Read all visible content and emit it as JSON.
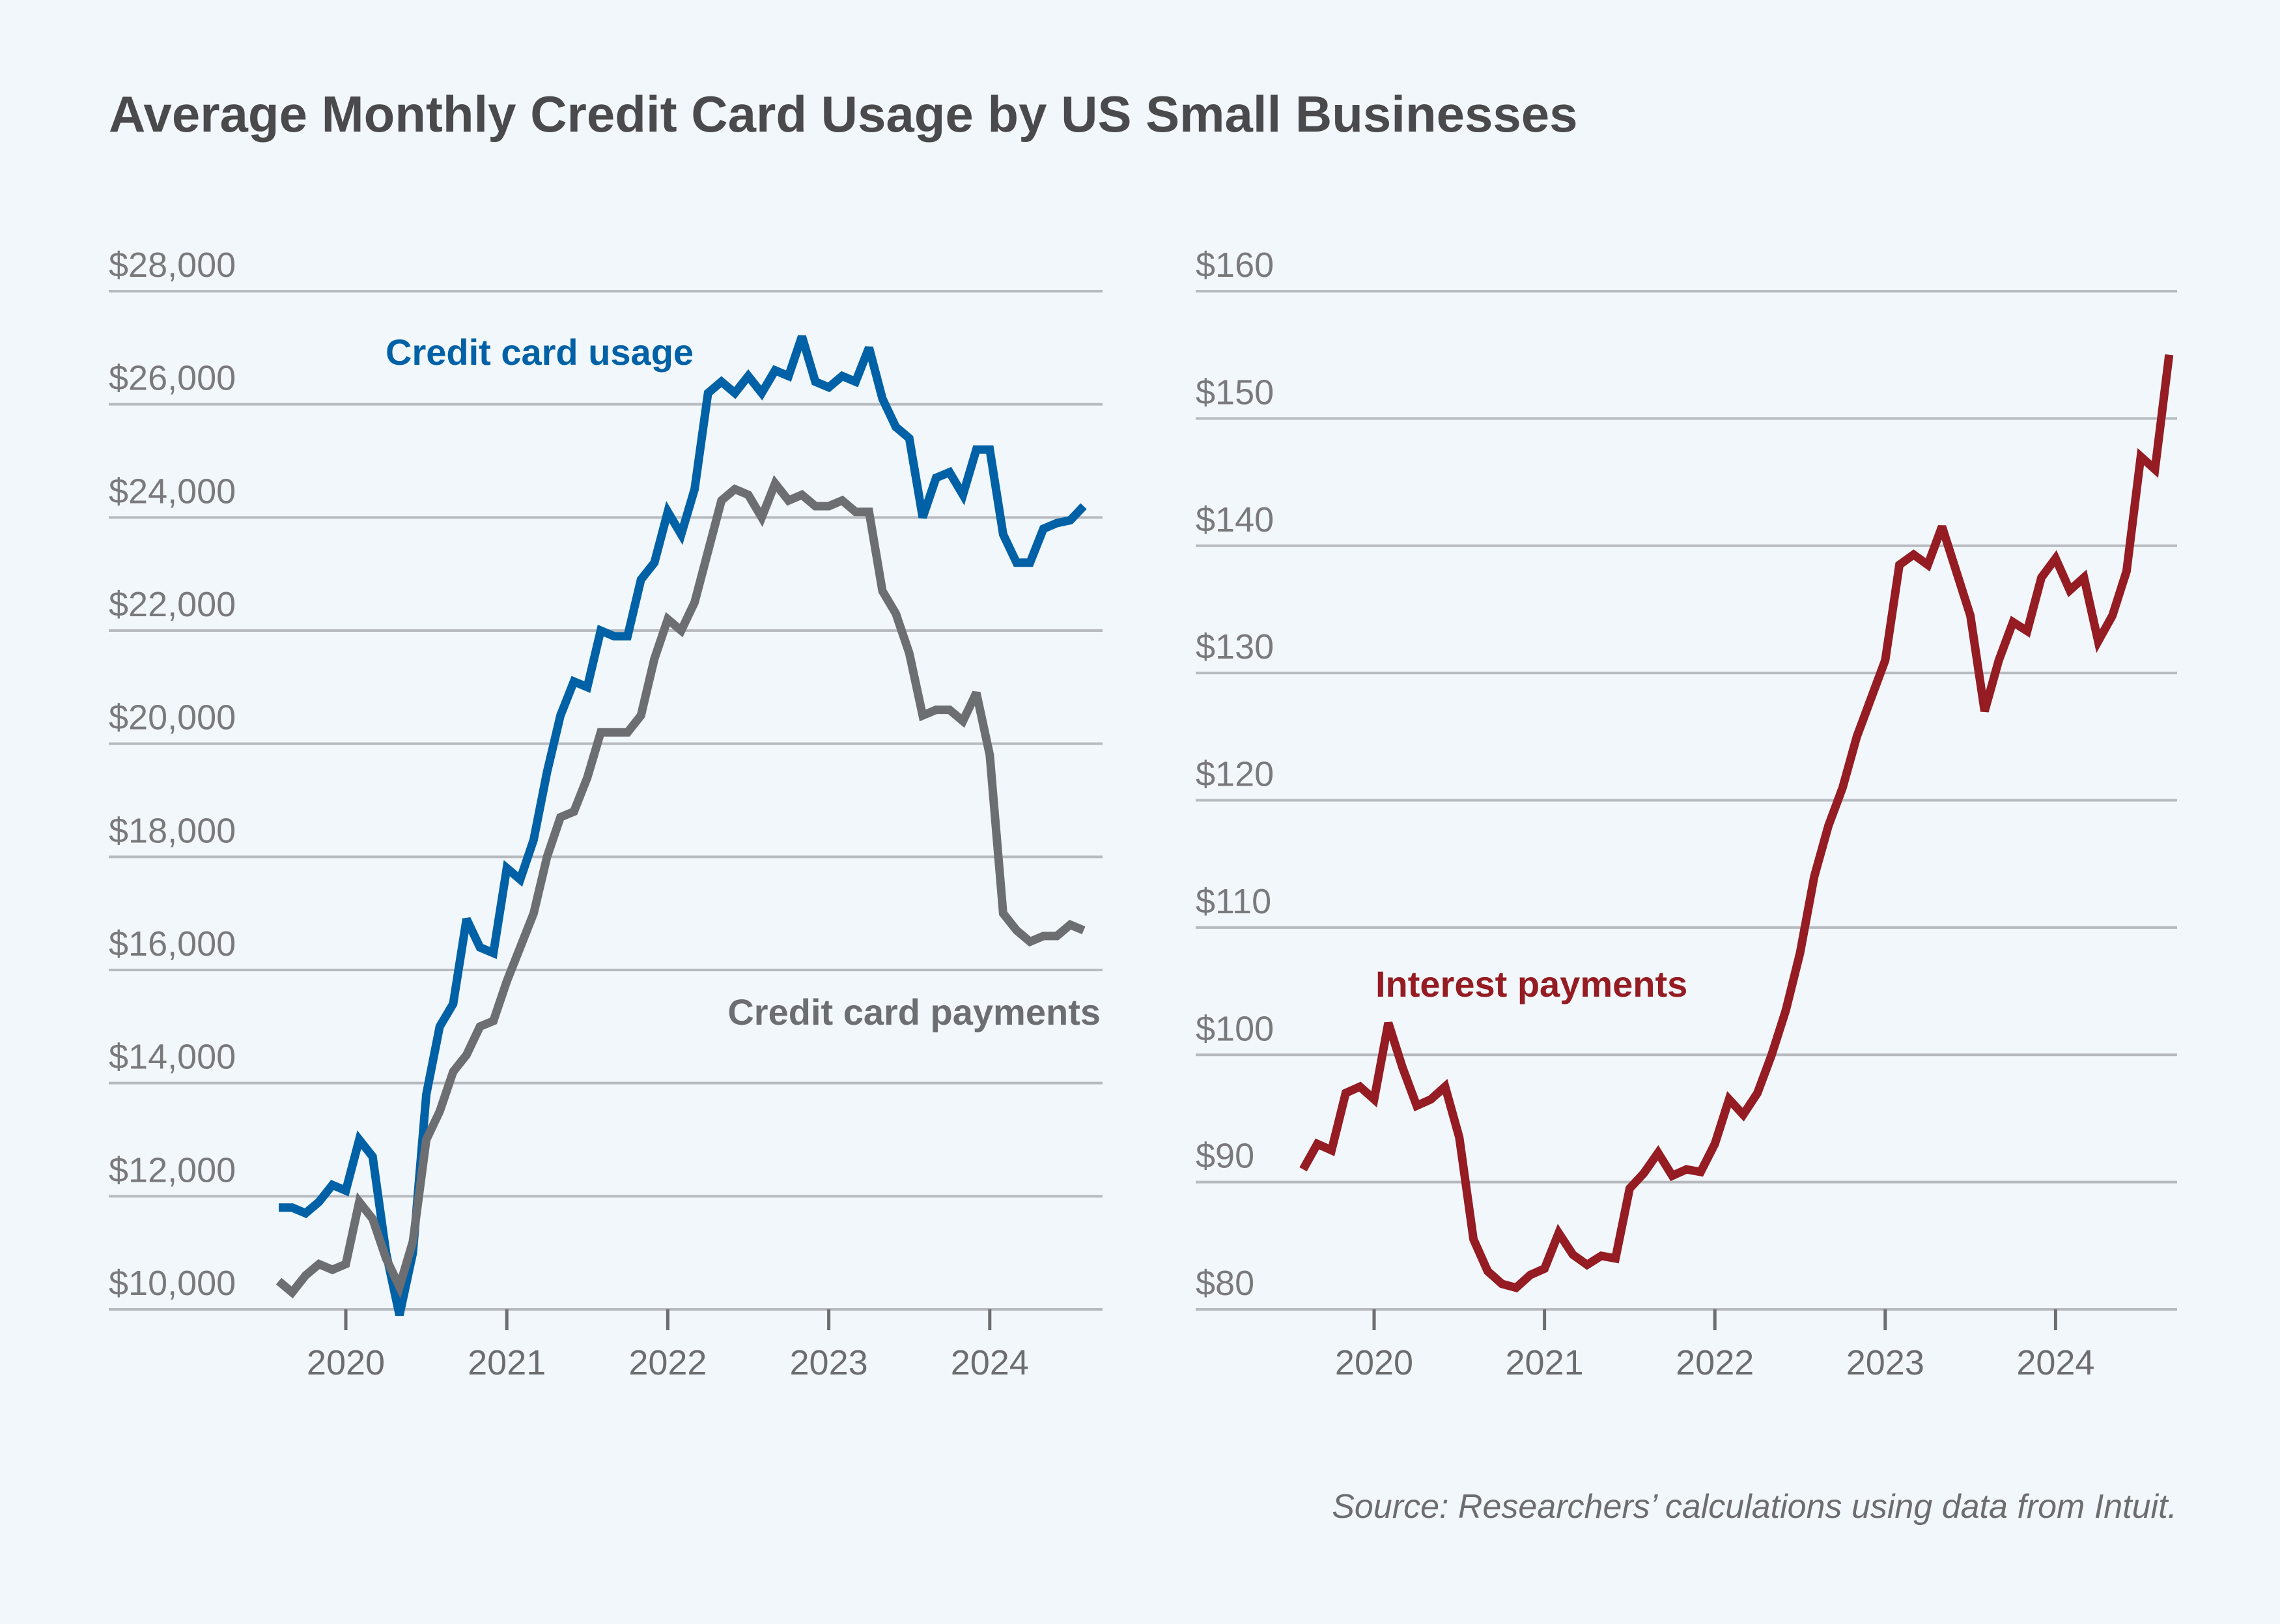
{
  "title": "Average Monthly Credit Card Usage by US Small Businesses",
  "source": "Source: Researchers’ calculations using data from Intuit.",
  "colors": {
    "background": "#f2f7fb",
    "usage": "#0061a6",
    "payments": "#6d6e71",
    "interest": "#941c22",
    "grid": "#b7bbc0"
  },
  "chart_data": [
    {
      "type": "line",
      "title": "",
      "xlabel": "",
      "ylabel": "",
      "ylim": [
        10000,
        28000
      ],
      "yticks": [
        10000,
        12000,
        14000,
        16000,
        18000,
        20000,
        22000,
        24000,
        26000,
        28000
      ],
      "ytick_labels": [
        "$10,000",
        "$12,000",
        "$14,000",
        "$16,000",
        "$18,000",
        "$20,000",
        "$22,000",
        "$24,000",
        "$26,000",
        "$28,000"
      ],
      "xticks": [
        "2020",
        "2021",
        "2022",
        "2023",
        "2024"
      ],
      "grid": true,
      "x_start": "2019-08",
      "series": [
        {
          "name": "Credit card usage",
          "color": "#0061a6",
          "values": [
            11800,
            11800,
            11700,
            11900,
            12200,
            12100,
            13000,
            12700,
            11000,
            9900,
            11000,
            13800,
            15000,
            15400,
            16900,
            16400,
            16300,
            17800,
            17600,
            18300,
            19500,
            20500,
            21100,
            21000,
            22000,
            21900,
            21900,
            22900,
            23200,
            24100,
            23700,
            24500,
            26200,
            26400,
            26200,
            26500,
            26200,
            26600,
            26500,
            27200,
            26400,
            26300,
            26500,
            26400,
            27000,
            26100,
            25600,
            25400,
            24000,
            24700,
            24800,
            24400,
            25200,
            25200,
            23700,
            23200,
            23200,
            23800,
            23900,
            23950,
            24200
          ]
        },
        {
          "name": "Credit card payments",
          "color": "#6d6e71",
          "values": [
            10500,
            10300,
            10600,
            10800,
            10700,
            10800,
            11900,
            11600,
            10900,
            10400,
            11200,
            13000,
            13500,
            14200,
            14500,
            15000,
            15100,
            15800,
            16400,
            17000,
            18000,
            18700,
            18800,
            19400,
            20200,
            20200,
            20200,
            20500,
            21500,
            22200,
            22000,
            22500,
            23400,
            24300,
            24500,
            24400,
            24000,
            24600,
            24300,
            24400,
            24200,
            24200,
            24300,
            24100,
            24100,
            22700,
            22300,
            21600,
            20500,
            20600,
            20600,
            20400,
            20900,
            19800,
            17000,
            16700,
            16500,
            16600,
            16600,
            16800,
            16700
          ]
        }
      ]
    },
    {
      "type": "line",
      "title": "",
      "xlabel": "",
      "ylabel": "",
      "ylim": [
        80,
        160
      ],
      "yticks": [
        80,
        90,
        100,
        110,
        120,
        130,
        140,
        150,
        160
      ],
      "ytick_labels": [
        "$80",
        "$90",
        "$100",
        "$110",
        "$120",
        "$130",
        "$140",
        "$150",
        "$160"
      ],
      "xticks": [
        "2020",
        "2021",
        "2022",
        "2023",
        "2024"
      ],
      "grid": true,
      "x_start": "2019-08",
      "series": [
        {
          "name": "Interest payments",
          "color": "#941c22",
          "values": [
            91,
            93,
            92.5,
            97,
            97.5,
            96.5,
            102.5,
            99,
            96,
            96.5,
            97.5,
            93.5,
            85.5,
            83,
            82,
            81.7,
            82.7,
            83.2,
            86,
            84.3,
            83.5,
            84.2,
            84,
            89.5,
            90.7,
            92.3,
            90.5,
            91,
            90.8,
            93,
            96.5,
            95.3,
            97,
            100,
            103.5,
            108,
            114,
            118,
            121,
            125,
            128,
            131,
            138.5,
            139.3,
            138.5,
            141.5,
            138,
            134.5,
            127,
            131,
            134,
            133.3,
            137.5,
            139,
            136.5,
            137.5,
            132.5,
            134.5,
            138,
            147,
            146,
            155
          ]
        }
      ]
    }
  ]
}
